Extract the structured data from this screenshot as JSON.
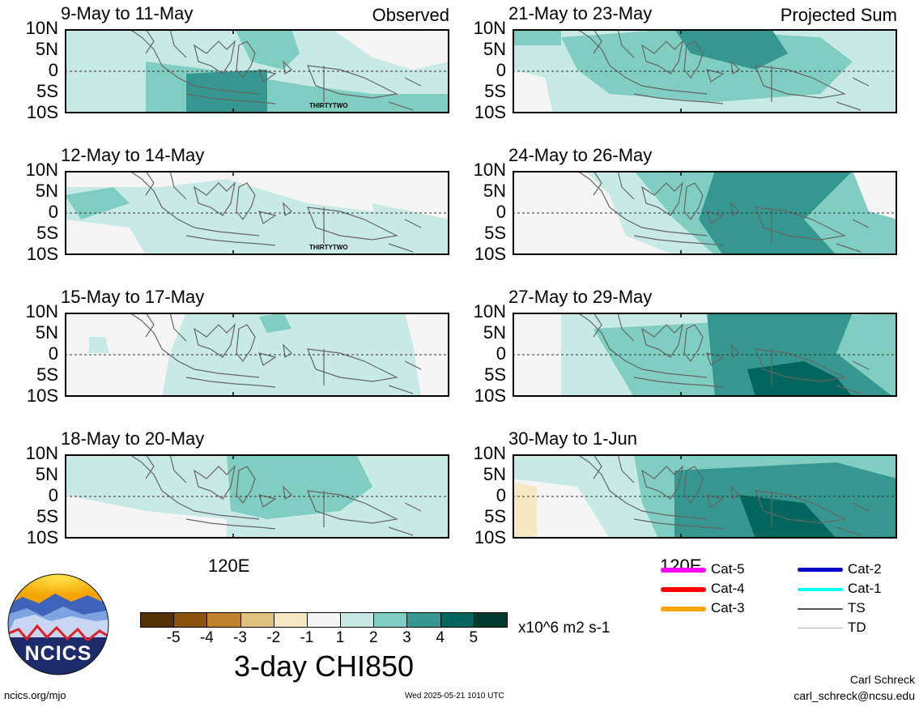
{
  "panels": [
    {
      "title": "9-May to 11-May",
      "corner": "Observed",
      "storm_label": "THIRTYTWO"
    },
    {
      "title": "21-May to 23-May",
      "corner": "Projected Sum",
      "storm_label": ""
    },
    {
      "title": "12-May to 14-May",
      "corner": "",
      "storm_label": "THIRTYTWO"
    },
    {
      "title": "24-May to 26-May",
      "corner": "",
      "storm_label": ""
    },
    {
      "title": "15-May to 17-May",
      "corner": "",
      "storm_label": ""
    },
    {
      "title": "27-May to 29-May",
      "corner": "",
      "storm_label": ""
    },
    {
      "title": "18-May to 20-May",
      "corner": "",
      "storm_label": ""
    },
    {
      "title": "30-May to 1-Jun",
      "corner": "",
      "storm_label": ""
    }
  ],
  "lat_labels": [
    "10N",
    "5N",
    "0",
    "5S",
    "10S"
  ],
  "lon_label": "120E",
  "colorbar": {
    "ticks": [
      "-5",
      "-4",
      "-3",
      "-2",
      "-1",
      "1",
      "2",
      "3",
      "4",
      "5"
    ],
    "colors": [
      "#543005",
      "#8c510a",
      "#bf812d",
      "#dfc27d",
      "#f6e8c3",
      "#f5f5f5",
      "#c7eae5",
      "#80cdc1",
      "#35978f",
      "#01665e",
      "#003c30"
    ],
    "units": "x10^6 m2 s-1",
    "title": "3-day CHI850"
  },
  "storm_legend": [
    {
      "label": "Cat-5",
      "color": "#ff00ff",
      "weight": 6
    },
    {
      "label": "Cat-4",
      "color": "#ff0000",
      "weight": 6
    },
    {
      "label": "Cat-3",
      "color": "#ffa500",
      "weight": 6
    },
    {
      "label": "Cat-2",
      "color": "#0000cc",
      "weight": 5
    },
    {
      "label": "Cat-1",
      "color": "#00ffff",
      "weight": 4
    },
    {
      "label": "TS",
      "color": "#555555",
      "weight": 2
    },
    {
      "label": "TD",
      "color": "#aaaaaa",
      "weight": 1
    }
  ],
  "logo": {
    "text": "NCICS"
  },
  "footer": {
    "site": "ncics.org/mjo",
    "timestamp": "Wed 2025-05-21 1010 UTC",
    "author": "Carl Schreck",
    "email": "carl_schreck@ncsu.edu"
  }
}
